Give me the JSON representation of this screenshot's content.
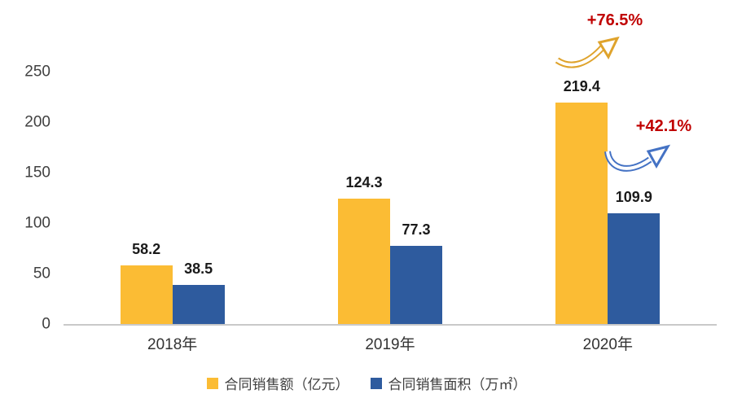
{
  "chart_data": {
    "type": "bar",
    "title": "",
    "categories": [
      "2018年",
      "2019年",
      "2020年"
    ],
    "series": [
      {
        "name": "合同销售额（亿元）",
        "color": "#FBBC34",
        "values": [
          58.2,
          124.3,
          219.4
        ]
      },
      {
        "name": "合同销售面积（万㎡）",
        "color": "#2E5B9E",
        "values": [
          38.5,
          77.3,
          109.9
        ]
      }
    ],
    "ylim": [
      0,
      250
    ],
    "yticks": [
      0,
      50,
      100,
      150,
      200,
      250
    ],
    "grid": false,
    "legend_position": "bottom",
    "annotations": [
      {
        "text": "+76.5%",
        "color": "#C00000",
        "arrow_color": "#DFA32C",
        "series": "合同销售额（亿元）",
        "category": "2020年"
      },
      {
        "text": "+42.1%",
        "color": "#C00000",
        "arrow_color": "#4472C4",
        "series": "合同销售面积（万㎡）",
        "category": "2020年"
      }
    ]
  }
}
